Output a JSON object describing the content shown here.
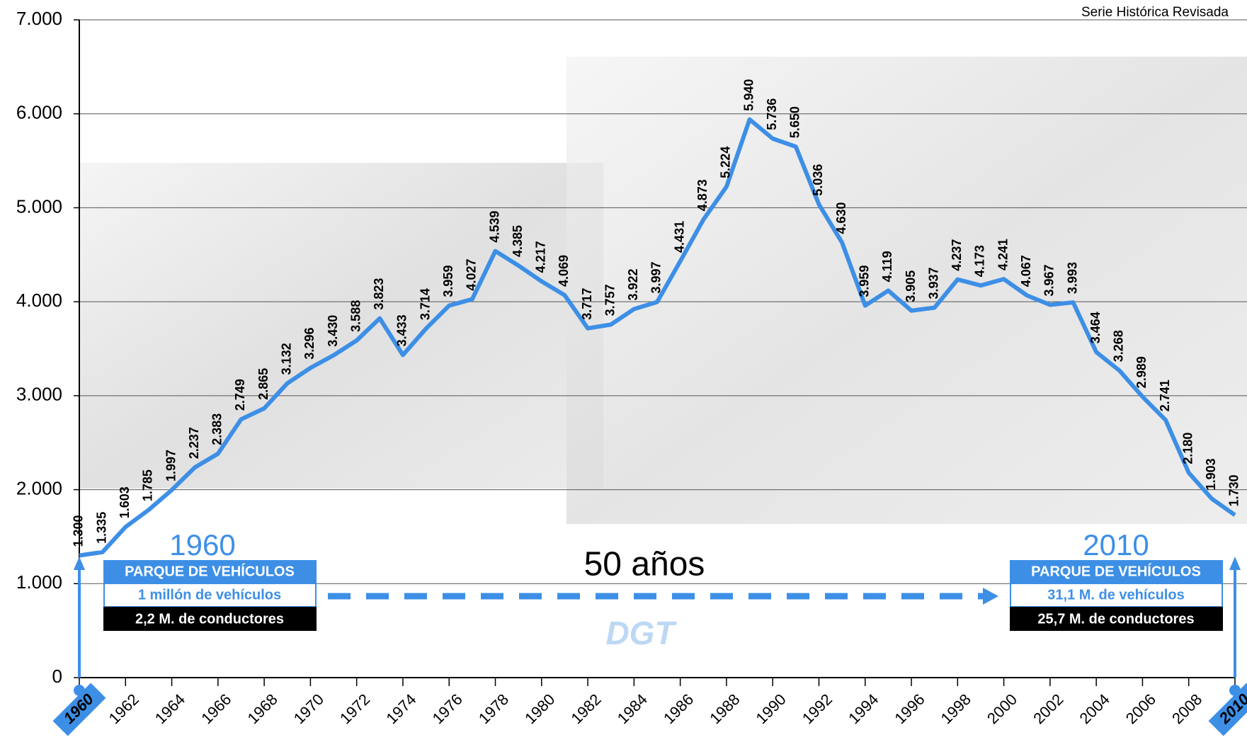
{
  "chart_data": {
    "type": "line",
    "source_note": "Serie Histórica Revisada",
    "span_label": "50 años",
    "logo": "DGT",
    "left_box": {
      "year": "1960",
      "heading": "PARQUE DE VEHÍCULOS",
      "line1": "1 millón de vehículos",
      "line2": "2,2 M. de conductores"
    },
    "right_box": {
      "year": "2010",
      "heading": "PARQUE DE VEHÍCULOS",
      "line1": "31,1 M. de vehículos",
      "line2": "25,7 M. de conductores"
    },
    "x": [
      1960,
      1961,
      1962,
      1963,
      1964,
      1965,
      1966,
      1967,
      1968,
      1969,
      1970,
      1971,
      1972,
      1973,
      1974,
      1975,
      1976,
      1977,
      1978,
      1979,
      1980,
      1981,
      1982,
      1983,
      1984,
      1985,
      1986,
      1987,
      1988,
      1989,
      1990,
      1991,
      1992,
      1993,
      1994,
      1995,
      1996,
      1997,
      1998,
      1999,
      2000,
      2001,
      2002,
      2003,
      2004,
      2005,
      2006,
      2007,
      2008,
      2009,
      2010
    ],
    "values": [
      1300,
      1335,
      1603,
      1785,
      1997,
      2237,
      2383,
      2749,
      2865,
      3132,
      3296,
      3430,
      3588,
      3823,
      3433,
      3714,
      3959,
      4027,
      4539,
      4385,
      4217,
      4069,
      3717,
      3757,
      3922,
      3997,
      4431,
      4873,
      5224,
      5940,
      5736,
      5650,
      5036,
      4630,
      3959,
      4119,
      3905,
      3937,
      4237,
      4173,
      4241,
      4067,
      3967,
      3993,
      3464,
      3268,
      2989,
      2741,
      2180,
      1903,
      1730
    ],
    "value_labels": [
      "1.300",
      "1.335",
      "1.603",
      "1.785",
      "1.997",
      "2.237",
      "2.383",
      "2.749",
      "2.865",
      "3.132",
      "3.296",
      "3.430",
      "3.588",
      "3.823",
      "3.433",
      "3.714",
      "3.959",
      "4.027",
      "4.539",
      "4.385",
      "4.217",
      "4.069",
      "3.717",
      "3.757",
      "3.922",
      "3.997",
      "4.431",
      "4.873",
      "5.224",
      "5.940",
      "5.736",
      "5.650",
      "5.036",
      "4.630",
      "3.959",
      "4.119",
      "3.905",
      "3.937",
      "4.237",
      "4.173",
      "4.241",
      "4.067",
      "3.967",
      "3.993",
      "3.464",
      "3.268",
      "2.989",
      "2.741",
      "2.180",
      "1.903",
      "1.730"
    ],
    "color": "#3d8fe6",
    "xlim": [
      1960,
      2010
    ],
    "xticks": [
      1960,
      1962,
      1964,
      1966,
      1968,
      1970,
      1972,
      1974,
      1976,
      1978,
      1980,
      1982,
      1984,
      1986,
      1988,
      1990,
      1992,
      1994,
      1996,
      1998,
      2000,
      2002,
      2004,
      2006,
      2008,
      2010
    ],
    "ylim": [
      0,
      7000
    ],
    "yticks": [
      0,
      {
        "value": 1000,
        "label": "1.000"
      },
      {
        "value": 2000,
        "label": "2.000"
      },
      {
        "value": 3000,
        "label": "3.000"
      },
      {
        "value": 4000,
        "label": "4.000"
      },
      {
        "value": 5000,
        "label": "5.000"
      },
      {
        "value": 6000,
        "label": "6.000"
      },
      {
        "value": 7000,
        "label": "7.000"
      }
    ],
    "grid": true
  }
}
